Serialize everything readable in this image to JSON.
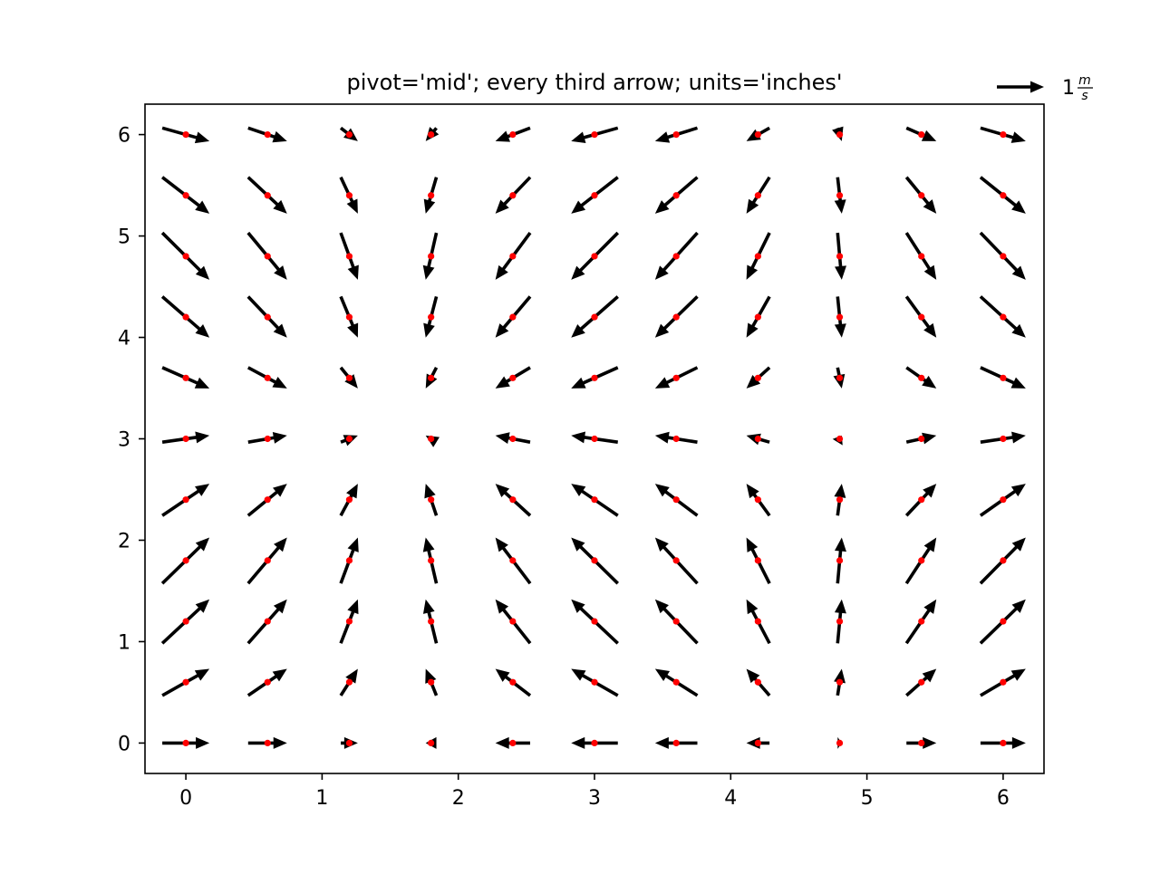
{
  "chart_data": {
    "type": "quiver",
    "title": "pivot='mid'; every third arrow; units='inches'",
    "xlabel": "",
    "ylabel": "",
    "xlim": [
      -0.3,
      6.3
    ],
    "ylim": [
      -0.3,
      6.3
    ],
    "x_ticks": [
      0,
      1,
      2,
      3,
      4,
      5,
      6
    ],
    "x_tick_labels": [
      "0",
      "1",
      "2",
      "3",
      "4",
      "5",
      "6"
    ],
    "y_ticks": [
      0,
      1,
      2,
      3,
      4,
      5,
      6
    ],
    "y_tick_labels": [
      "0",
      "1",
      "2",
      "3",
      "4",
      "5",
      "6"
    ],
    "grid": false,
    "vector_field": {
      "u": "cos(x)",
      "v": "sin(y)",
      "x_values": [
        0,
        0.6,
        1.2,
        1.8,
        2.4,
        3.0,
        3.6,
        4.2,
        4.8,
        5.4,
        6.0
      ],
      "y_values": [
        0,
        0.6,
        1.2,
        1.8,
        2.4,
        3.0,
        3.6,
        4.2,
        4.8,
        5.4,
        6.0
      ]
    },
    "pivot": "mid",
    "arrow_color": "#000000",
    "point_color": "#ff0000",
    "key": {
      "value": 1,
      "label": "1",
      "label_numerator": "m",
      "label_denominator": "s",
      "placement": "top-right"
    }
  }
}
